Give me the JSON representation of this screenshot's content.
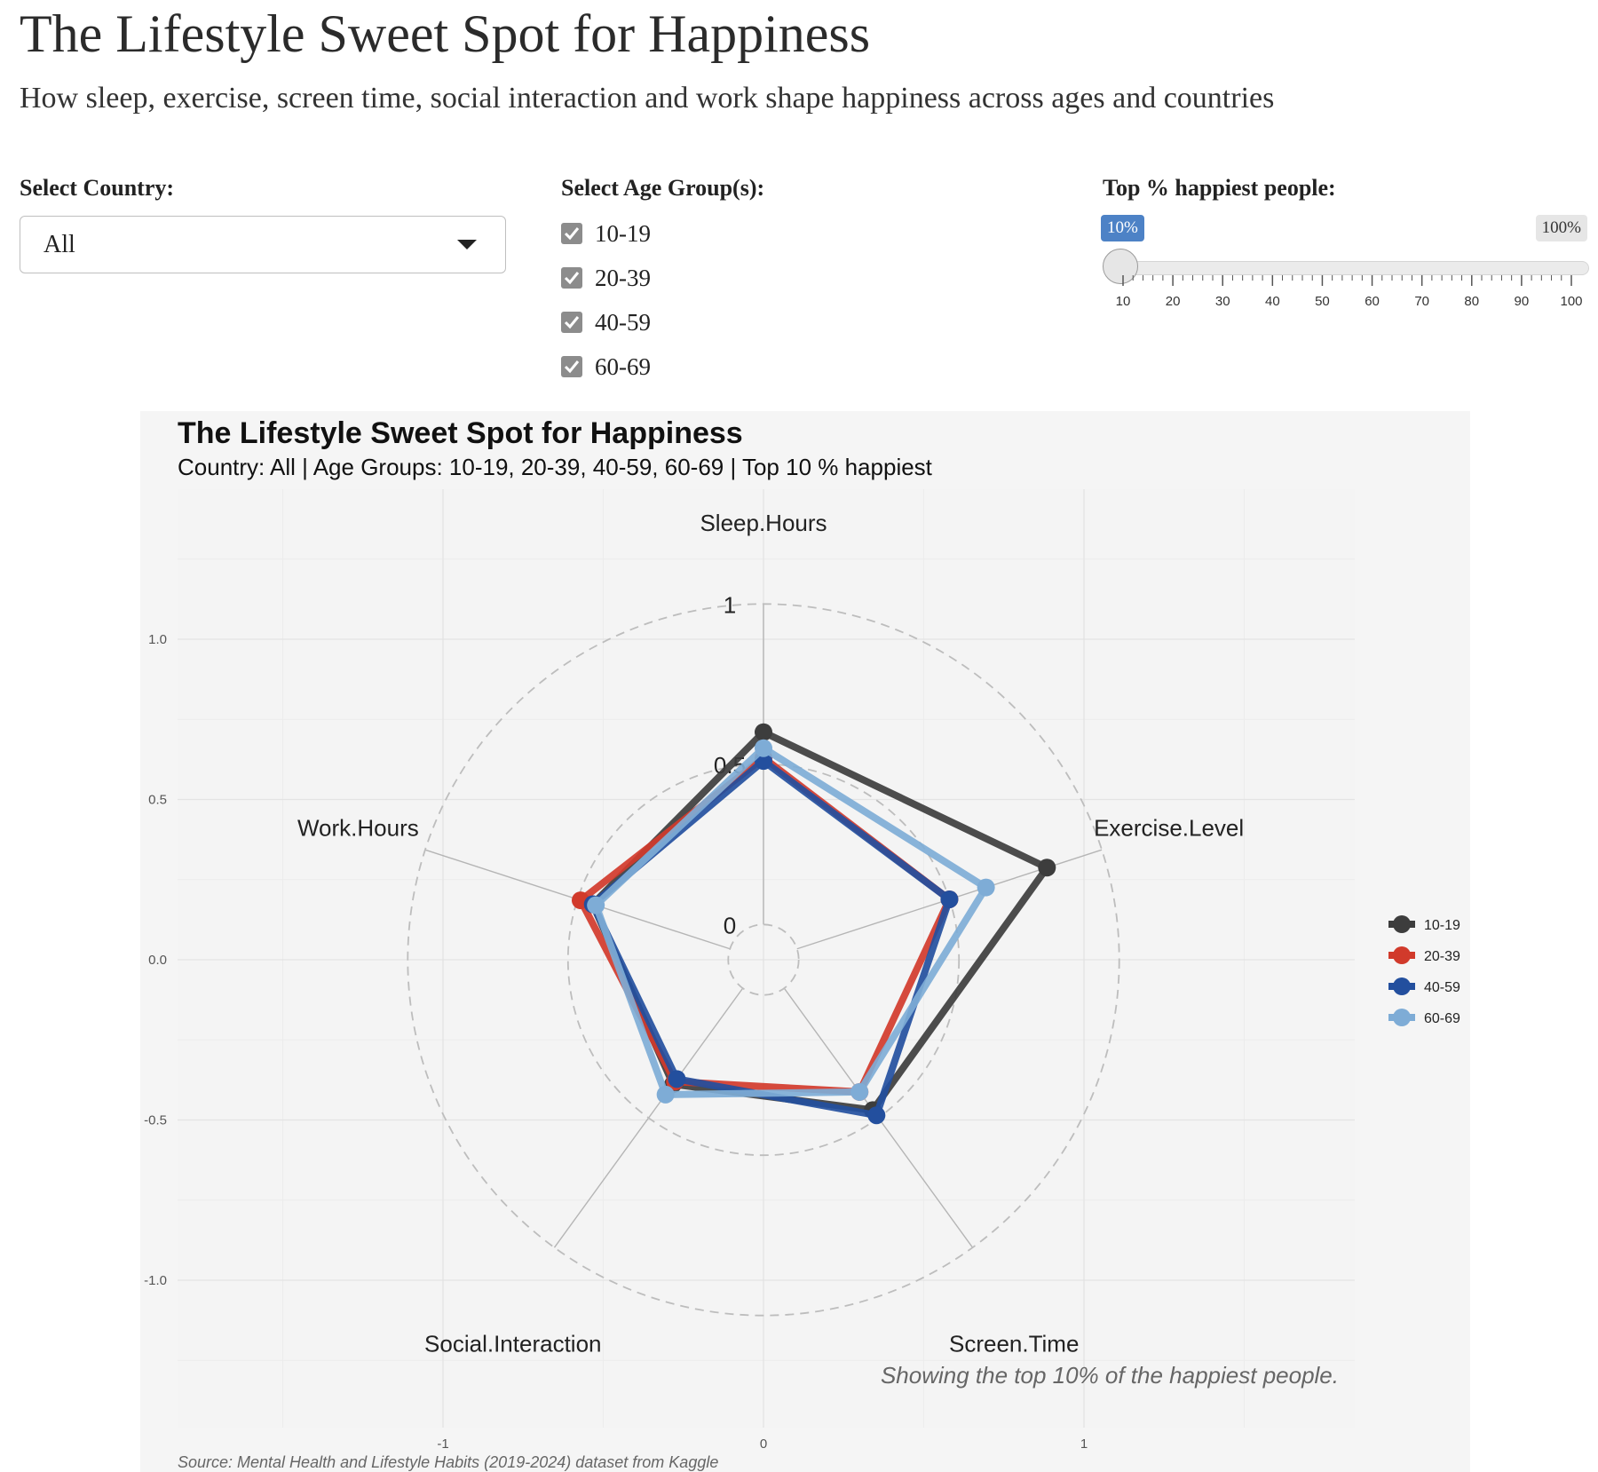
{
  "header": {
    "title": "The Lifestyle Sweet Spot for Happiness",
    "subtitle": "How sleep, exercise, screen time, social interaction and work shape happiness across ages and countries"
  },
  "controls": {
    "country": {
      "label": "Select Country:",
      "value": "All"
    },
    "age_groups": {
      "label": "Select Age Group(s):",
      "options": [
        {
          "label": "10-19",
          "checked": true
        },
        {
          "label": "20-39",
          "checked": true
        },
        {
          "label": "40-59",
          "checked": true
        },
        {
          "label": "60-69",
          "checked": true
        }
      ]
    },
    "top_percent": {
      "label": "Top % happiest people:",
      "value": 10,
      "value_label": "10%",
      "max_label": "100%",
      "min": 10,
      "max": 100,
      "ticks": [
        "10",
        "20",
        "30",
        "40",
        "50",
        "60",
        "70",
        "80",
        "90",
        "100"
      ]
    }
  },
  "chart_data": {
    "type": "radar",
    "title": "The Lifestyle Sweet Spot for Happiness",
    "subtitle": "Country: All | Age Groups: 10-19, 20-39, 40-59, 60-69 | Top 10 % happiest",
    "axes": [
      "Sleep.Hours",
      "Exercise.Level",
      "Screen.Time",
      "Social.Interaction",
      "Work.Hours"
    ],
    "radial_labels": [
      "0",
      "0.5",
      "1"
    ],
    "radial_range": [
      0,
      1
    ],
    "x_ticks": [
      "-1",
      "0",
      "1"
    ],
    "y_ticks": [
      "1.0",
      "0.5",
      "0.0",
      "-0.5",
      "-1.0"
    ],
    "series": [
      {
        "name": "10-19",
        "color": "#3d3d3d",
        "values": [
          0.6,
          0.82,
          0.47,
          0.37,
          0.45
        ]
      },
      {
        "name": "20-39",
        "color": "#d13a2b",
        "values": [
          0.52,
          0.5,
          0.4,
          0.36,
          0.49
        ]
      },
      {
        "name": "40-59",
        "color": "#234f9e",
        "values": [
          0.51,
          0.5,
          0.49,
          0.35,
          0.45
        ]
      },
      {
        "name": "60-69",
        "color": "#7eacd6",
        "values": [
          0.55,
          0.62,
          0.4,
          0.41,
          0.44
        ]
      }
    ],
    "legend_position": "right",
    "note": "Showing the top 10% of the happiest people.",
    "source": "Source: Mental Health and Lifestyle Habits (2019-2024) dataset from Kaggle"
  }
}
